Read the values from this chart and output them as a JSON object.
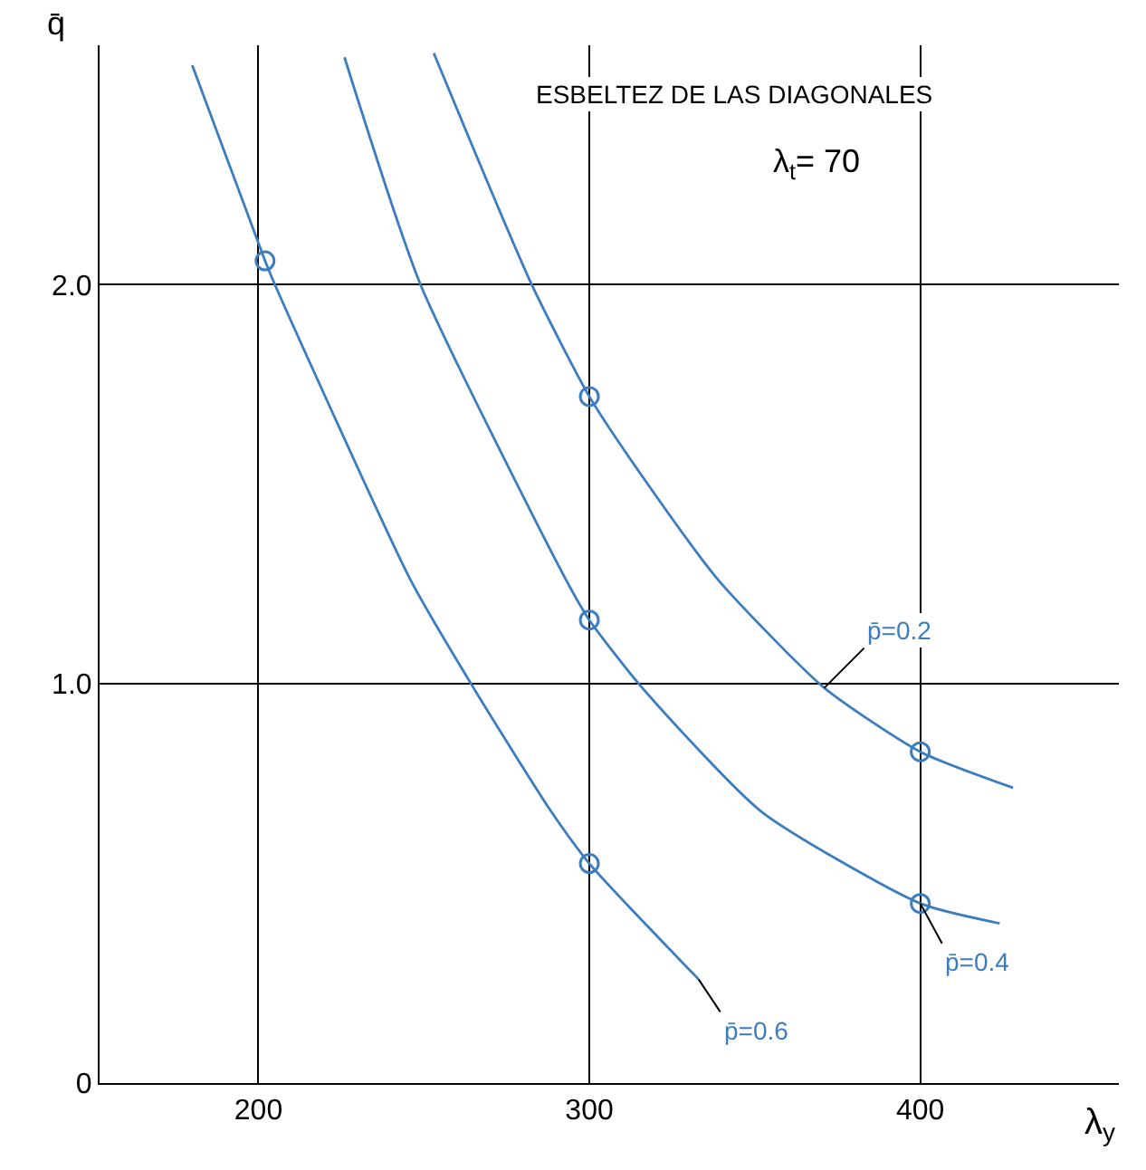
{
  "chart_data": {
    "type": "line",
    "title": "ESBELTEZ DE LAS DIAGONALES",
    "subtitle": "λ$_{t}$= 70",
    "xlabel": "λ$_{y}$",
    "ylabel": "q̄",
    "xlim": [
      152,
      460
    ],
    "ylim": [
      0,
      2.6
    ],
    "xticks": [
      200,
      300,
      400
    ],
    "yticks": [
      0,
      {
        "value": 1,
        "label": "1.0"
      },
      {
        "value": 2,
        "label": "2.0"
      }
    ],
    "grid": true,
    "legend": false,
    "line_style": "solid",
    "marker": "none",
    "series": [
      {
        "name": "p̄=0.2",
        "color": "#3b7dbf",
        "x": [
          253,
          282.6,
          300,
          316,
          339,
          371,
          400,
          428
        ],
        "values": [
          2.58,
          2.0,
          1.72,
          1.52,
          1.26,
          0.99,
          0.83,
          0.74
        ]
      },
      {
        "name": "p̄=0.4",
        "color": "#3b7dbf",
        "x": [
          226,
          249,
          293,
          300,
          316,
          352,
          400,
          424
        ],
        "values": [
          2.57,
          2.0,
          1.26,
          1.16,
          0.99,
          0.68,
          0.45,
          0.4
        ]
      },
      {
        "name": "p̄=0.6",
        "color": "#3b7dbf",
        "x": [
          180,
          202,
          205,
          246,
          265,
          288.5,
          300,
          333
        ],
        "values": [
          2.55,
          2.06,
          2.0,
          1.26,
          0.99,
          0.68,
          0.55,
          0.26
        ]
      },
      {
        "type": "scatter",
        "marker": "circle",
        "color": "#3b7dbf",
        "x": [
          202,
          300,
          300,
          300,
          400,
          400
        ],
        "values": [
          2.06,
          1.72,
          1.16,
          0.55,
          0.83,
          0.45
        ]
      }
    ]
  }
}
